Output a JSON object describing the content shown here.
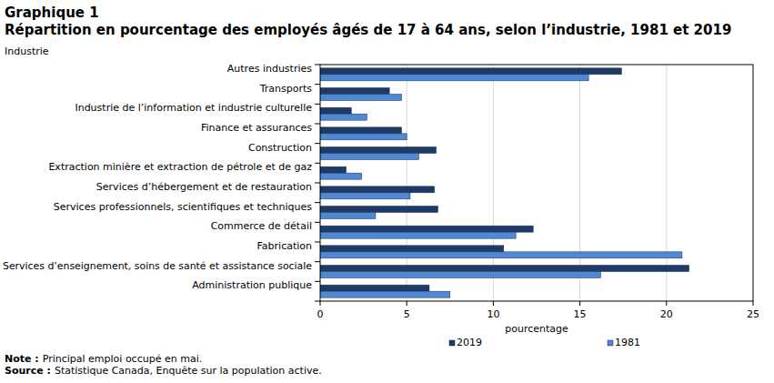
{
  "chart_data": {
    "type": "bar",
    "orientation": "horizontal",
    "title": "Graphique 1",
    "subtitle": "Répartition en pourcentage des employés âgés de 17 à 64 ans, selon l’industrie, 1981 et 2019",
    "ylabel": "Industrie",
    "xlabel": "pourcentage",
    "categories": [
      "Autres industries",
      "Transports",
      "Industrie de l’information et industrie culturelle",
      "Finance et assurances",
      "Construction",
      "Extraction minière et extraction de pétrole et de gaz",
      "Services d’hébergement et de restauration",
      "Services professionnels, scientifiques et techniques",
      "Commerce de détail",
      "Fabrication",
      "Services d’enseignement, soins de santé et assistance sociale",
      "Administration publique"
    ],
    "series": [
      {
        "name": "2019",
        "color": "#1d3b66",
        "values": [
          17.4,
          4.0,
          1.8,
          4.7,
          6.7,
          1.5,
          6.6,
          6.8,
          12.3,
          10.6,
          21.3,
          6.3
        ]
      },
      {
        "name": "1981",
        "color": "#4f89d6",
        "values": [
          15.5,
          4.7,
          2.7,
          5.0,
          5.7,
          2.4,
          5.2,
          3.2,
          11.3,
          20.9,
          16.2,
          7.5
        ]
      }
    ],
    "xlim": [
      0,
      25
    ],
    "xticks": [
      0,
      5,
      10,
      15,
      20,
      25
    ],
    "grid": true,
    "legend": "bottom",
    "annotations": [
      {
        "label": "Note :",
        "text": "Principal emploi occupé en mai."
      },
      {
        "label": "Source :",
        "text": "Statistique Canada, Enquête sur la population active."
      }
    ]
  }
}
